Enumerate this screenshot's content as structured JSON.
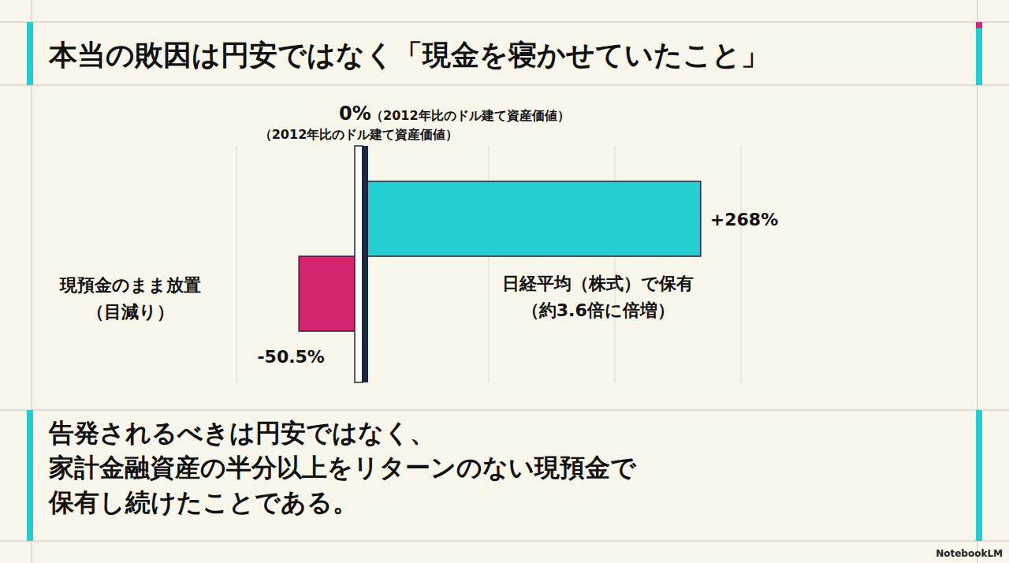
{
  "chart_data": {
    "type": "bar",
    "title": "本当の敗因は円安ではなく「現金を寝かせていたこと」",
    "orientation": "horizontal",
    "categories": [
      "現預金のまま放置",
      "日経平均（株式）で保有"
    ],
    "category_notes": [
      "（目減り）",
      "（約3.6倍に倍増）"
    ],
    "values": [
      -50.5,
      268
    ],
    "value_labels": [
      "-50.5%",
      "+268%"
    ],
    "colors": [
      "#d4256f",
      "#24cdd0"
    ],
    "data_labels": true,
    "xlim": [
      -100,
      300
    ],
    "xticks": [
      -100,
      0,
      100,
      200,
      300
    ],
    "grid": true,
    "tick_labels": false,
    "zero_label": "0%",
    "zero_notes": [
      "（2012年比のドル建て資産価値）",
      "（2012年比のドル建て資産価値）"
    ],
    "footer": [
      "告発されるべきは円安ではなく、",
      "家計金融資産の半分以上をリターンのない現預金で",
      "保有し続けたことである。"
    ],
    "logo": "NotebookLM"
  }
}
